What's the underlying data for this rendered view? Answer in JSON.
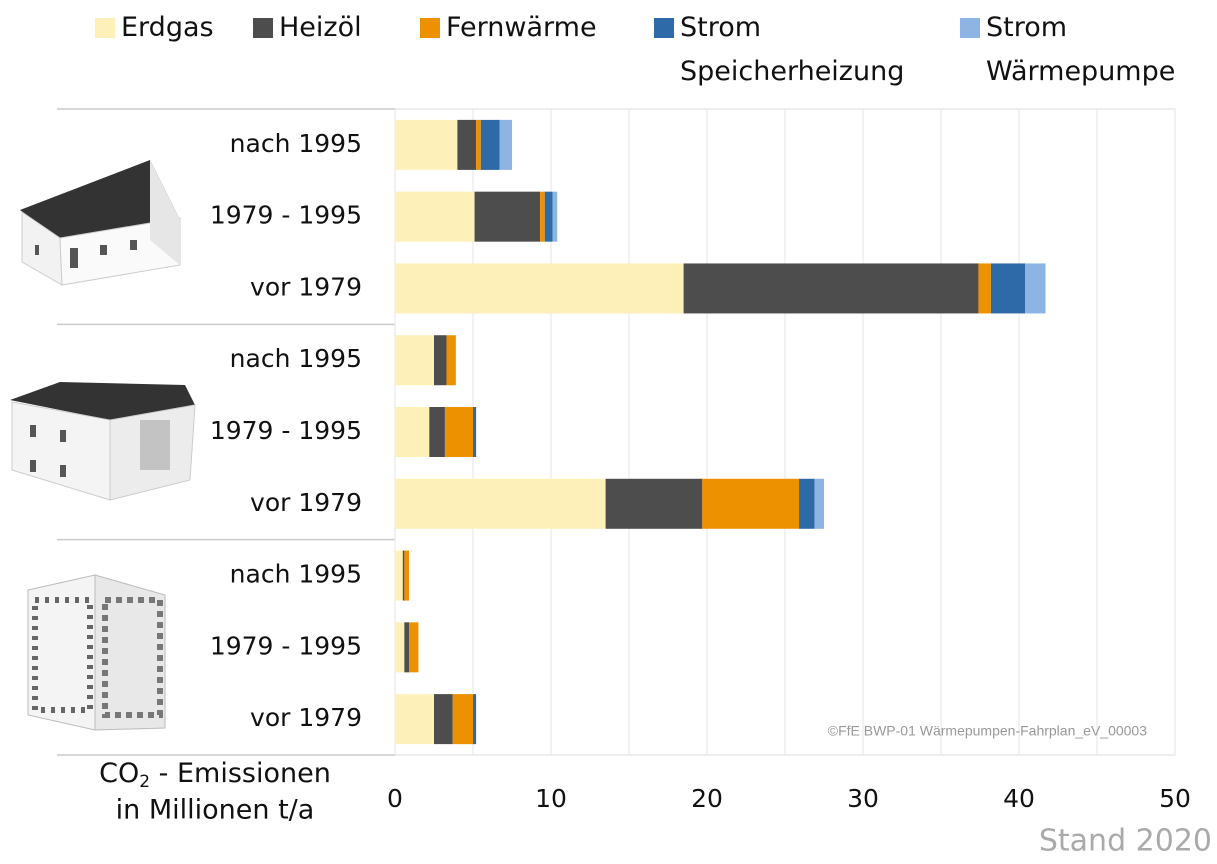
{
  "chart_data": {
    "type": "stacked_barh",
    "categories": [
      "nach 1995",
      "1979 - 1995",
      "vor 1979",
      "nach 1995",
      "1979 - 1995",
      "vor 1979",
      "nach 1995",
      "1979 - 1995",
      "vor 1979"
    ],
    "series": [
      {
        "name": "Erdgas",
        "color": "#fdf0b8",
        "values": [
          4.0,
          5.1,
          18.5,
          2.5,
          2.2,
          13.5,
          0.5,
          0.6,
          2.5
        ]
      },
      {
        "name": "Heizöl",
        "color": "#4d4d4d",
        "values": [
          1.2,
          4.2,
          18.9,
          0.8,
          1.0,
          6.2,
          0.1,
          0.3,
          1.2
        ]
      },
      {
        "name": "Fernwärme",
        "color": "#ee9100",
        "values": [
          0.3,
          0.3,
          0.8,
          0.6,
          1.8,
          6.2,
          0.3,
          0.6,
          1.3
        ]
      },
      {
        "name": "Strom Speicherheizung",
        "color": "#2e6aa8",
        "values": [
          1.2,
          0.5,
          2.2,
          0,
          0.2,
          1.0,
          0,
          0,
          0.2
        ]
      },
      {
        "name": "Strom Wärmepumpe",
        "color": "#8db4e2",
        "values": [
          0.8,
          0.3,
          1.3,
          0,
          0,
          0.6,
          0,
          0,
          0
        ]
      }
    ],
    "xlim": [
      0,
      50
    ],
    "xticks": [
      0,
      10,
      20,
      30,
      40,
      50
    ],
    "minor_xticks": [
      5,
      15,
      25,
      35,
      45
    ],
    "grid": true,
    "x_label": {
      "main": "CO",
      "sub": "2",
      "rest": " - Emissionen",
      "line2": "in Millionen t/a"
    },
    "watermark": "©FfE BWP-01 Wärmepumpen-Fahrplan_eV_00003",
    "note": "Stand 2020"
  }
}
